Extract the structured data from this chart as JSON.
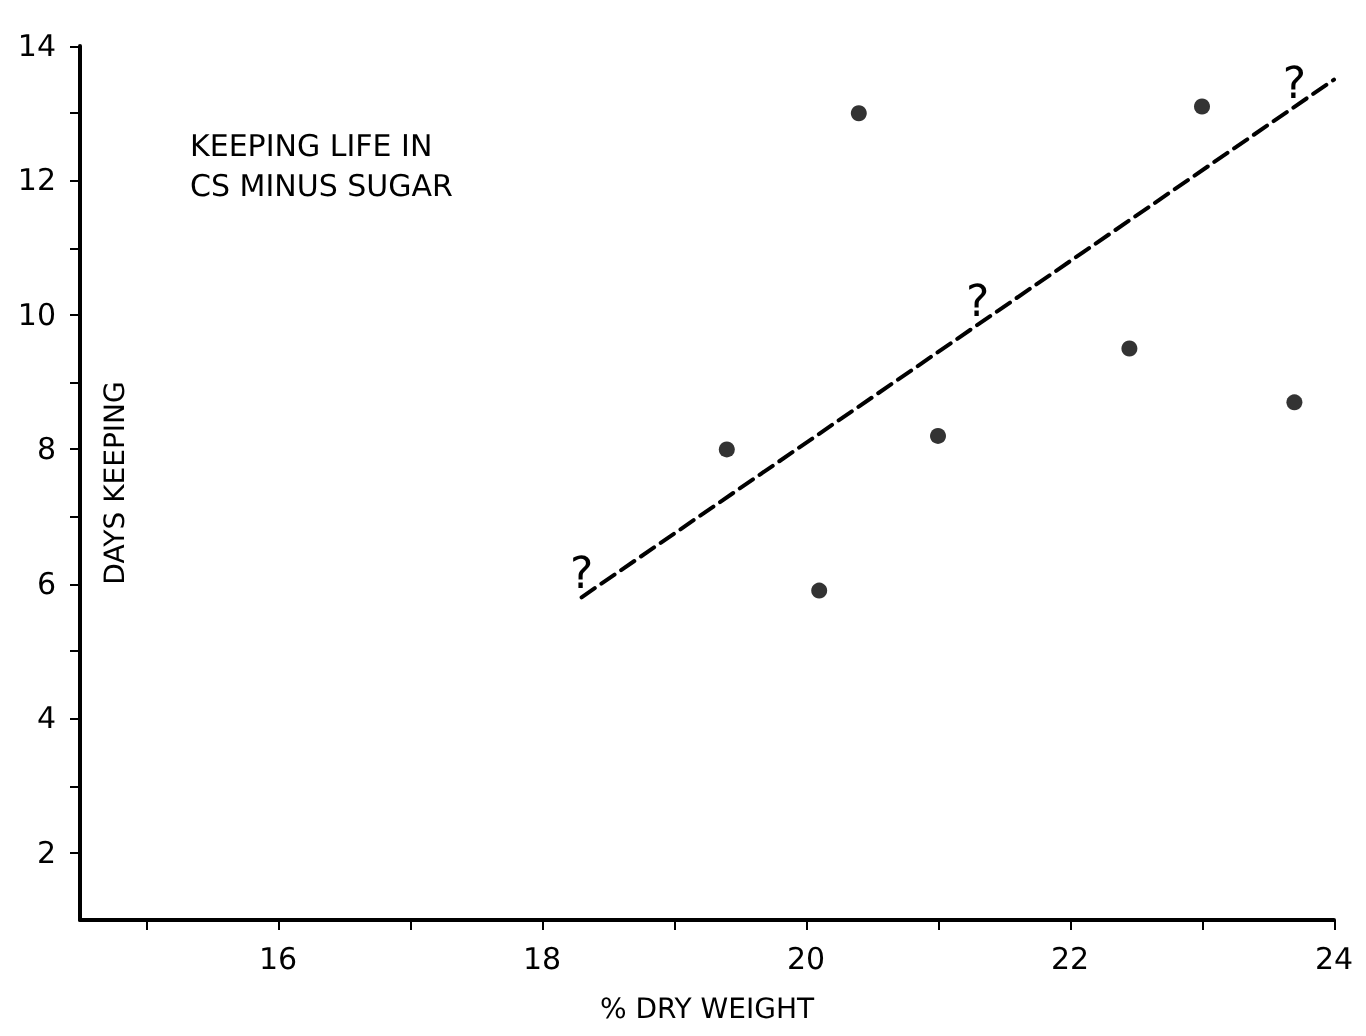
{
  "chart_data": {
    "type": "scatter",
    "title": "KEEPING LIFE IN\nCS MINUS SUGAR",
    "xlabel": "% DRY WEIGHT",
    "ylabel": "DAYS KEEPING",
    "x": [
      19.4,
      20.1,
      20.4,
      21.0,
      22.45,
      23.0,
      23.7
    ],
    "series": [
      {
        "color": "#000000",
        "values": [
          8.0,
          5.9,
          13.0,
          8.2,
          9.5,
          13.1,
          8.7
        ],
        "marker": "circle"
      },
      {
        "type": "line",
        "color": "#000000",
        "x": [
          18.3,
          24
        ],
        "values": [
          5.8,
          13.5
        ],
        "line_style": "dashed",
        "marker": "none"
      }
    ],
    "annotations": [
      {
        "text": "?",
        "x": 18.3,
        "y": 5.8
      },
      {
        "text": "?",
        "x": 21.3,
        "y": 9.85
      },
      {
        "text": "?",
        "x": 23.7,
        "y": 13.1
      }
    ],
    "xlim": [
      14.5,
      24
    ],
    "ylim": [
      1,
      14
    ],
    "xticks": [
      {
        "value": 15,
        "label": null
      },
      16,
      {
        "value": 17,
        "label": null
      },
      18,
      {
        "value": 19,
        "label": null
      },
      20,
      {
        "value": 21,
        "label": null
      },
      22,
      {
        "value": 23,
        "label": null
      },
      24
    ],
    "yticks": [
      2,
      {
        "value": 3,
        "label": null
      },
      4,
      {
        "value": 5,
        "label": null
      },
      6,
      {
        "value": 7,
        "label": null
      },
      8,
      {
        "value": 9,
        "label": null
      },
      10,
      {
        "value": 11,
        "label": null
      },
      12,
      {
        "value": 13,
        "label": null
      },
      14
    ],
    "grid": false
  }
}
